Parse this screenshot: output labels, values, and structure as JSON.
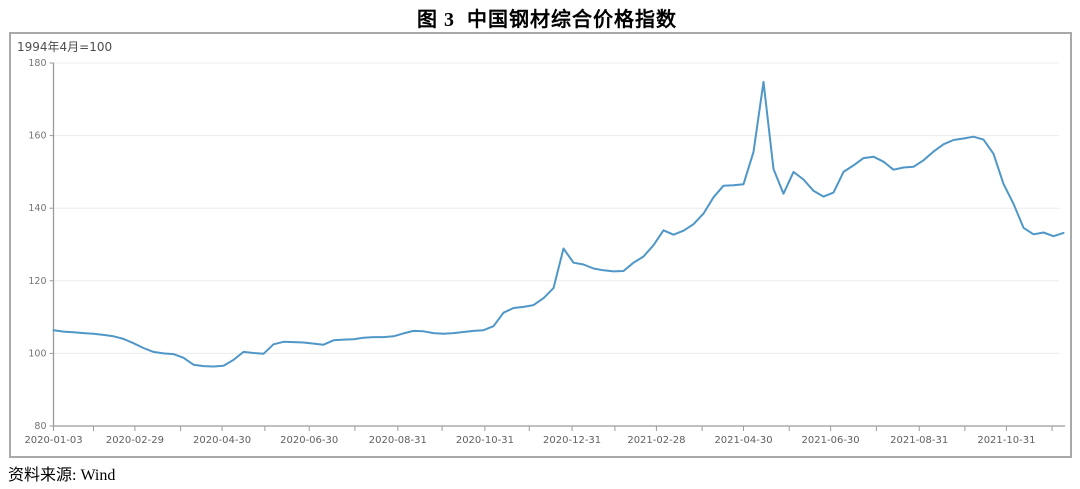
{
  "figure": {
    "title": "图 3  中国钢材综合价格指数"
  },
  "source_note": "资料来源: Wind",
  "chart_data": {
    "type": "line",
    "title": "图 3 中国钢材综合价格指数",
    "unit_note": "1994年4月=100",
    "legend": "none",
    "grid": "horizontal",
    "ylim": [
      80,
      180
    ],
    "yticks": [
      80,
      100,
      120,
      140,
      160,
      180
    ],
    "colors": {
      "line": "#4f97c7",
      "grid": "#ececec",
      "axis": "#9a9a9a",
      "tick_label": "#757575",
      "x_label": "#5f5f5f",
      "panel_border": "#a9a9a9"
    },
    "x_axis": {
      "start": "2020-01-03",
      "frequency": "weekly",
      "major_ticks": [
        {
          "label": "2020-01-03",
          "week": 0
        },
        {
          "label": "2020-02-29",
          "week": 8.14
        },
        {
          "label": "2020-04-30",
          "week": 16.86
        },
        {
          "label": "2020-06-30",
          "week": 25.57
        },
        {
          "label": "2020-08-31",
          "week": 34.43
        },
        {
          "label": "2020-10-31",
          "week": 43.14
        },
        {
          "label": "2020-12-31",
          "week": 51.86
        },
        {
          "label": "2021-02-28",
          "week": 60.29
        },
        {
          "label": "2021-04-30",
          "week": 69.0
        },
        {
          "label": "2021-06-30",
          "week": 77.71
        },
        {
          "label": "2021-08-31",
          "week": 86.57
        },
        {
          "label": "2021-10-31",
          "week": 95.29
        }
      ],
      "minor_tick_weeks": [
        4.0,
        12.71,
        21.14,
        30.14,
        38.86,
        47.57,
        56.14,
        64.86,
        73.57,
        82.29,
        91.14,
        99.86
      ]
    },
    "series": [
      {
        "name": "中国钢材综合价格指数",
        "values": [
          106.4,
          106.0,
          105.8,
          105.6,
          105.4,
          105.1,
          104.7,
          104.0,
          102.8,
          101.5,
          100.4,
          100.0,
          99.8,
          98.8,
          96.9,
          96.5,
          96.4,
          96.6,
          98.2,
          100.4,
          100.1,
          99.9,
          102.5,
          103.2,
          103.1,
          103.0,
          102.7,
          102.4,
          103.6,
          103.8,
          103.9,
          104.3,
          104.5,
          104.5,
          104.7,
          105.5,
          106.2,
          106.1,
          105.6,
          105.4,
          105.6,
          105.9,
          106.2,
          106.4,
          107.5,
          111.2,
          112.5,
          112.8,
          113.3,
          115.2,
          118.0,
          128.9,
          125.0,
          124.5,
          123.4,
          122.9,
          122.6,
          122.7,
          125.0,
          126.7,
          129.8,
          133.9,
          132.7,
          133.8,
          135.6,
          138.5,
          143.0,
          146.2,
          146.3,
          146.6,
          155.5,
          174.8,
          150.8,
          144.0,
          150.0,
          147.9,
          144.8,
          143.2,
          144.3,
          150.0,
          151.8,
          153.8,
          154.2,
          152.8,
          150.6,
          151.2,
          151.4,
          153.2,
          155.6,
          157.6,
          158.8,
          159.2,
          159.7,
          158.9,
          155.0,
          146.7,
          141.2,
          134.6,
          132.8,
          133.3,
          132.3,
          133.2
        ]
      }
    ]
  }
}
